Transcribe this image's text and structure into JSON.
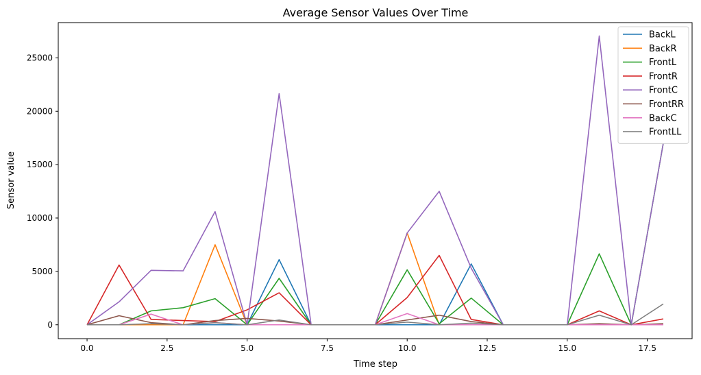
{
  "chart_data": {
    "type": "line",
    "title": "Average Sensor Values Over Time",
    "xlabel": "Time step",
    "ylabel": "Sensor value",
    "xlim": [
      -0.9,
      18.9
    ],
    "ylim": [
      -1300,
      28300
    ],
    "xticks": [
      0.0,
      2.5,
      5.0,
      7.5,
      10.0,
      12.5,
      15.0,
      17.5
    ],
    "xtick_labels": [
      "0.0",
      "2.5",
      "5.0",
      "7.5",
      "10.0",
      "12.5",
      "15.0",
      "17.5"
    ],
    "yticks": [
      0,
      5000,
      10000,
      15000,
      20000,
      25000
    ],
    "ytick_labels": [
      "0",
      "5000",
      "10000",
      "15000",
      "20000",
      "25000"
    ],
    "grid": false,
    "legend_position": "top-right",
    "x": [
      0,
      1,
      2,
      3,
      4,
      5,
      6,
      7,
      8,
      9,
      10,
      11,
      12,
      13,
      14,
      15,
      16,
      17,
      18
    ],
    "series": [
      {
        "name": "BackL",
        "color": "#1f77b4",
        "values": [
          0,
          0,
          0,
          0,
          0,
          0,
          6100,
          0,
          0,
          0,
          0,
          0,
          5700,
          0,
          0,
          0,
          0,
          0,
          0
        ]
      },
      {
        "name": "BackR",
        "color": "#ff7f0e",
        "values": [
          0,
          0,
          0,
          0,
          7500,
          0,
          0,
          0,
          0,
          0,
          8600,
          0,
          0,
          0,
          0,
          0,
          0,
          0,
          0
        ]
      },
      {
        "name": "FrontL",
        "color": "#2ca02c",
        "values": [
          0,
          0,
          1300,
          1600,
          2450,
          0,
          4350,
          0,
          0,
          0,
          5150,
          100,
          2500,
          0,
          0,
          0,
          6650,
          0,
          17000
        ]
      },
      {
        "name": "FrontR",
        "color": "#d62728",
        "values": [
          0,
          5600,
          500,
          400,
          300,
          1400,
          3000,
          0,
          0,
          0,
          2550,
          6500,
          500,
          0,
          0,
          0,
          1300,
          0,
          550
        ]
      },
      {
        "name": "FrontC",
        "color": "#9467bd",
        "values": [
          0,
          2150,
          5100,
          5050,
          10600,
          0,
          21650,
          0,
          0,
          0,
          8600,
          12500,
          5300,
          0,
          0,
          0,
          27050,
          0,
          17000
        ]
      },
      {
        "name": "FrontRR",
        "color": "#8c564b",
        "values": [
          0,
          850,
          200,
          0,
          400,
          600,
          350,
          0,
          0,
          0,
          450,
          900,
          300,
          0,
          0,
          0,
          100,
          0,
          100
        ]
      },
      {
        "name": "BackC",
        "color": "#e377c2",
        "values": [
          0,
          0,
          1000,
          0,
          200,
          0,
          0,
          0,
          0,
          0,
          1050,
          0,
          0,
          0,
          0,
          0,
          0,
          0,
          0
        ]
      },
      {
        "name": "FrontLL",
        "color": "#7f7f7f",
        "values": [
          0,
          0,
          100,
          0,
          200,
          0,
          450,
          0,
          0,
          0,
          250,
          0,
          150,
          0,
          0,
          0,
          900,
          0,
          1950
        ]
      }
    ]
  }
}
